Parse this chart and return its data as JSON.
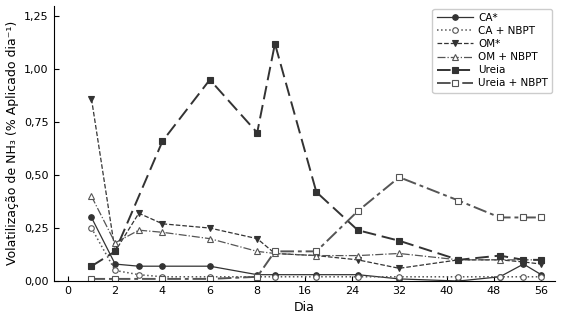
{
  "xlabel": "Dia",
  "ylabel": "Volatilização de NH₃ (% Aplicado dia⁻¹)",
  "ylim": [
    0,
    1.3
  ],
  "yticks": [
    0.0,
    0.25,
    0.5,
    0.75,
    1.0,
    1.25
  ],
  "xtick_labels": [
    "0",
    "2",
    "4",
    "6",
    "8",
    "16",
    "24",
    "32",
    "40",
    "48",
    "56"
  ],
  "xtick_vals": [
    0,
    2,
    4,
    6,
    8,
    16,
    24,
    32,
    40,
    48,
    56
  ],
  "series": [
    {
      "label": "CA*",
      "x": [
        1,
        2,
        3,
        4,
        6,
        8,
        11,
        18,
        25,
        32,
        42,
        49,
        53,
        56
      ],
      "y": [
        0.3,
        0.08,
        0.07,
        0.07,
        0.07,
        0.03,
        0.03,
        0.03,
        0.03,
        0.01,
        0.0,
        0.02,
        0.08,
        0.03
      ],
      "color": "#333333",
      "linestyle": "-",
      "marker": "o",
      "markerfacecolor": "#333333",
      "markersize": 4,
      "linewidth": 0.9
    },
    {
      "label": "CA + NBPT",
      "x": [
        1,
        2,
        3,
        4,
        6,
        8,
        11,
        18,
        25,
        32,
        42,
        49,
        53,
        56
      ],
      "y": [
        0.25,
        0.05,
        0.03,
        0.02,
        0.02,
        0.02,
        0.02,
        0.02,
        0.02,
        0.02,
        0.02,
        0.02,
        0.02,
        0.02
      ],
      "color": "#555555",
      "linestyle": ":",
      "marker": "o",
      "markerfacecolor": "white",
      "markersize": 4,
      "linewidth": 1.1
    },
    {
      "label": "OM*",
      "x": [
        1,
        2,
        3,
        4,
        6,
        8,
        11,
        18,
        25,
        32,
        42,
        49,
        53,
        56
      ],
      "y": [
        0.86,
        0.14,
        0.32,
        0.27,
        0.25,
        0.2,
        0.13,
        0.12,
        0.1,
        0.06,
        0.1,
        0.1,
        0.09,
        0.08
      ],
      "color": "#333333",
      "linestyle": "--",
      "marker": "v",
      "markerfacecolor": "#333333",
      "markersize": 5,
      "linewidth": 0.9
    },
    {
      "label": "OM + NBPT",
      "x": [
        1,
        2,
        3,
        4,
        6,
        8,
        11,
        18,
        25,
        32,
        42,
        49,
        53,
        56
      ],
      "y": [
        0.4,
        0.18,
        0.24,
        0.23,
        0.2,
        0.14,
        0.13,
        0.12,
        0.12,
        0.13,
        0.1,
        0.1,
        0.1,
        0.1
      ],
      "color": "#555555",
      "linestyle": "-.",
      "marker": "^",
      "markerfacecolor": "white",
      "markersize": 5,
      "linewidth": 0.9
    },
    {
      "label": "Ureia",
      "x": [
        1,
        2,
        4,
        6,
        8,
        11,
        18,
        25,
        32,
        42,
        49,
        53,
        56
      ],
      "y": [
        0.07,
        0.14,
        0.66,
        0.95,
        0.7,
        1.12,
        0.42,
        0.24,
        0.19,
        0.1,
        0.12,
        0.1,
        0.1
      ],
      "color": "#333333",
      "linestyle": "--",
      "marker": "s",
      "markerfacecolor": "#333333",
      "markersize": 5,
      "linewidth": 1.4
    },
    {
      "label": "Ureia + NBPT",
      "x": [
        1,
        2,
        4,
        6,
        8,
        11,
        18,
        25,
        32,
        42,
        49,
        53,
        56
      ],
      "y": [
        0.01,
        0.01,
        0.01,
        0.01,
        0.02,
        0.14,
        0.14,
        0.33,
        0.49,
        0.38,
        0.3,
        0.3,
        0.3
      ],
      "color": "#555555",
      "linestyle": "-.",
      "marker": "s",
      "markerfacecolor": "white",
      "markersize": 5,
      "linewidth": 1.4
    }
  ],
  "background_color": "#ffffff",
  "legend_fontsize": 7.5,
  "axis_fontsize": 9,
  "tick_fontsize": 8
}
